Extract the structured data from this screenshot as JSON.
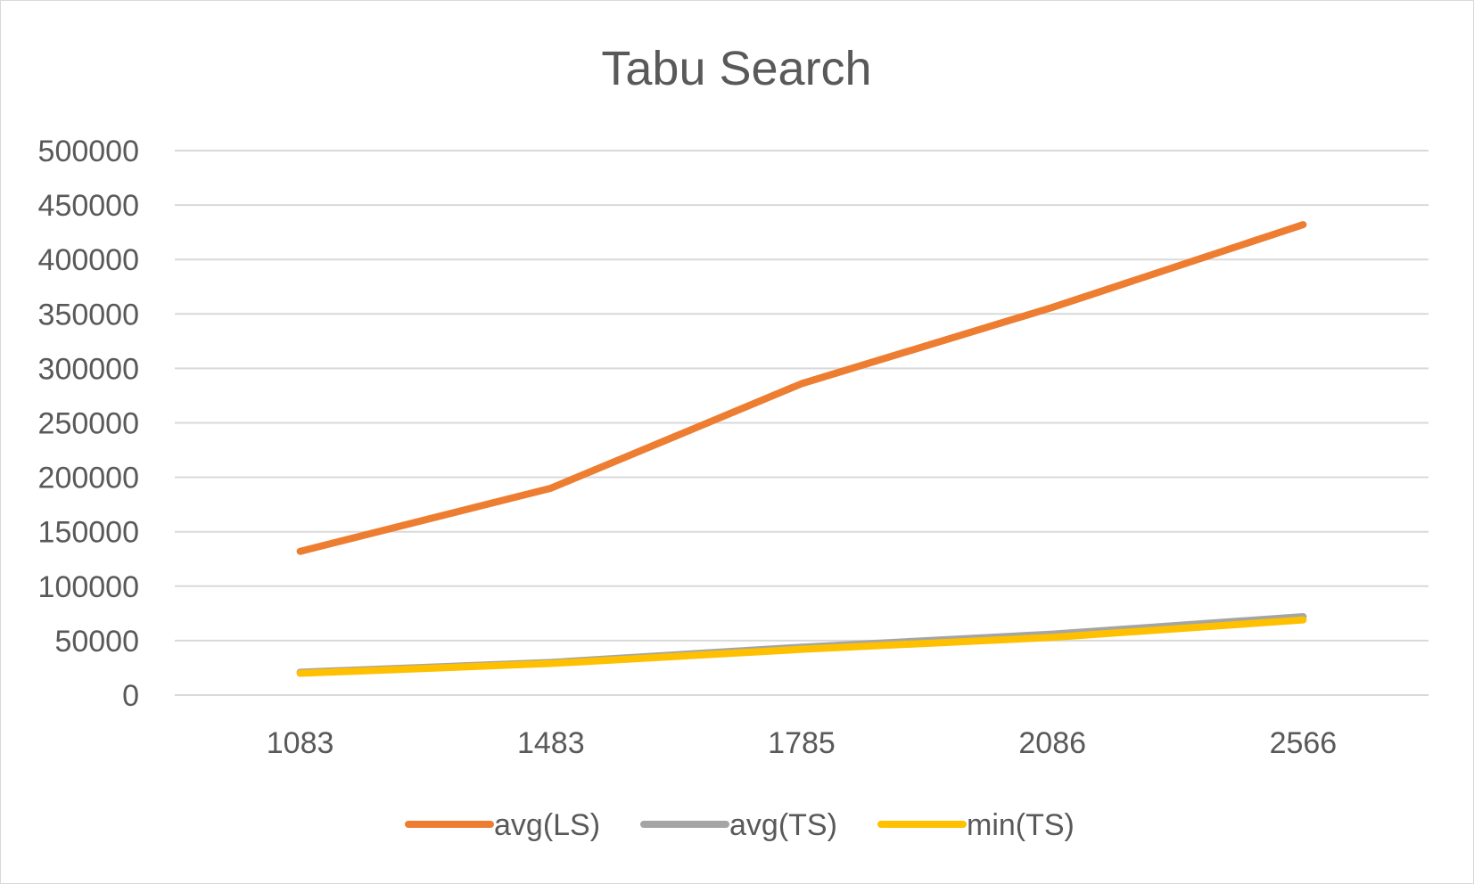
{
  "chart_data": {
    "type": "line",
    "title": "Tabu Search",
    "xlabel": "",
    "ylabel": "",
    "categories": [
      "1083",
      "1483",
      "1785",
      "2086",
      "2566"
    ],
    "y_ticks": [
      "0",
      "50000",
      "100000",
      "150000",
      "200000",
      "250000",
      "300000",
      "350000",
      "400000",
      "450000",
      "500000"
    ],
    "ylim": [
      0,
      500000
    ],
    "grid": true,
    "legend_position": "bottom",
    "series": [
      {
        "name": "avg(LS)",
        "color": "#ED7D31",
        "values": [
          132000,
          190000,
          286000,
          356000,
          432000
        ]
      },
      {
        "name": "avg(TS)",
        "color": "#A5A5A5",
        "values": [
          21000,
          30000,
          44000,
          56000,
          72000
        ]
      },
      {
        "name": "min(TS)",
        "color": "#FFC000",
        "values": [
          20000,
          29000,
          42000,
          53000,
          69000
        ]
      }
    ]
  }
}
